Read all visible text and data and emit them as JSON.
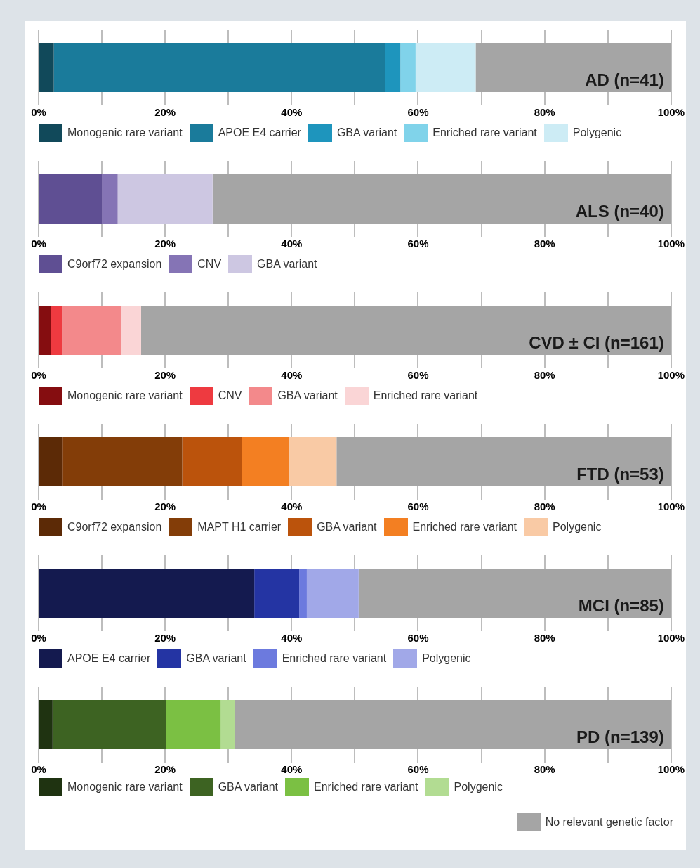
{
  "chart_data": [
    {
      "type": "bar",
      "title": "AD (n=41)",
      "orientation": "horizontal",
      "stacked": true,
      "categories": [
        null
      ],
      "xlim": [
        0,
        100
      ],
      "xticks": [
        {
          "value": 0,
          "label": "0%"
        },
        {
          "value": 10,
          "label": null
        },
        {
          "value": 20,
          "label": "20%"
        },
        {
          "value": 30,
          "label": null
        },
        {
          "value": 40,
          "label": "40%"
        },
        {
          "value": 50,
          "label": null
        },
        {
          "value": 60,
          "label": "60%"
        },
        {
          "value": 70,
          "label": null
        },
        {
          "value": 80,
          "label": "80%"
        },
        {
          "value": 90,
          "label": null
        },
        {
          "value": 100,
          "label": "100%"
        }
      ],
      "grid": "x",
      "legend": "bottom",
      "series": [
        {
          "name": "Monogenic rare variant",
          "color": "#11495a",
          "values": [
            2.4
          ]
        },
        {
          "name": "APOE E4 carrier",
          "color": "#1a7b9b",
          "values": [
            52.4
          ]
        },
        {
          "name": "GBA variant",
          "color": "#1e95bd",
          "values": [
            2.4
          ]
        },
        {
          "name": "Enriched rare variant",
          "color": "#80d3ea",
          "values": [
            2.4
          ]
        },
        {
          "name": "Polygenic",
          "color": "#cdecf5",
          "values": [
            9.5
          ]
        },
        {
          "color": "#a5a5a5",
          "values": [
            30.9
          ]
        }
      ]
    },
    {
      "type": "bar",
      "title": "ALS (n=40)",
      "orientation": "horizontal",
      "stacked": true,
      "categories": [
        null
      ],
      "xlim": [
        0,
        100
      ],
      "xticks": [
        {
          "value": 0,
          "label": "0%"
        },
        {
          "value": 10,
          "label": null
        },
        {
          "value": 20,
          "label": "20%"
        },
        {
          "value": 30,
          "label": null
        },
        {
          "value": 40,
          "label": "40%"
        },
        {
          "value": 50,
          "label": null
        },
        {
          "value": 60,
          "label": "60%"
        },
        {
          "value": 70,
          "label": null
        },
        {
          "value": 80,
          "label": "80%"
        },
        {
          "value": 90,
          "label": null
        },
        {
          "value": 100,
          "label": "100%"
        }
      ],
      "grid": "x",
      "legend": "bottom",
      "series": [
        {
          "name": "C9orf72 expansion",
          "color": "#5f4f93",
          "values": [
            10
          ]
        },
        {
          "name": "CNV",
          "color": "#8574b5",
          "values": [
            2.5
          ]
        },
        {
          "name": "GBA variant",
          "color": "#cdc7e2",
          "values": [
            15
          ]
        },
        {
          "color": "#a5a5a5",
          "values": [
            72.5
          ]
        }
      ]
    },
    {
      "type": "bar",
      "title": "CVD ± CI (n=161)",
      "orientation": "horizontal",
      "stacked": true,
      "categories": [
        null
      ],
      "xlim": [
        0,
        100
      ],
      "xticks": [
        {
          "value": 0,
          "label": "0%"
        },
        {
          "value": 10,
          "label": null
        },
        {
          "value": 20,
          "label": "20%"
        },
        {
          "value": 30,
          "label": null
        },
        {
          "value": 40,
          "label": "40%"
        },
        {
          "value": 50,
          "label": null
        },
        {
          "value": 60,
          "label": "60%"
        },
        {
          "value": 70,
          "label": null
        },
        {
          "value": 80,
          "label": "80%"
        },
        {
          "value": 90,
          "label": null
        },
        {
          "value": 100,
          "label": "100%"
        }
      ],
      "grid": "x",
      "legend": "bottom",
      "series": [
        {
          "name": "Monogenic rare variant",
          "color": "#850d10",
          "values": [
            1.9
          ]
        },
        {
          "name": "CNV",
          "color": "#ee3a40",
          "values": [
            1.9
          ]
        },
        {
          "name": "GBA variant",
          "color": "#f3898b",
          "values": [
            9.3
          ]
        },
        {
          "name": "Enriched rare variant",
          "color": "#fad5d6",
          "values": [
            3.1
          ]
        },
        {
          "color": "#a5a5a5",
          "values": [
            83.8
          ]
        }
      ]
    },
    {
      "type": "bar",
      "title": "FTD (n=53)",
      "orientation": "horizontal",
      "stacked": true,
      "categories": [
        null
      ],
      "xlim": [
        0,
        100
      ],
      "xticks": [
        {
          "value": 0,
          "label": "0%"
        },
        {
          "value": 10,
          "label": null
        },
        {
          "value": 20,
          "label": "20%"
        },
        {
          "value": 30,
          "label": null
        },
        {
          "value": 40,
          "label": "40%"
        },
        {
          "value": 50,
          "label": null
        },
        {
          "value": 60,
          "label": "60%"
        },
        {
          "value": 70,
          "label": null
        },
        {
          "value": 80,
          "label": "80%"
        },
        {
          "value": 90,
          "label": null
        },
        {
          "value": 100,
          "label": "100%"
        }
      ],
      "grid": "x",
      "legend": "bottom",
      "series": [
        {
          "name": "C9orf72 expansion",
          "color": "#5c2a06",
          "values": [
            3.8
          ]
        },
        {
          "name": "MAPT H1 carrier",
          "color": "#833d08",
          "values": [
            18.9
          ]
        },
        {
          "name": "GBA variant",
          "color": "#bb530c",
          "values": [
            9.4
          ]
        },
        {
          "name": "Enriched rare variant",
          "color": "#f37f22",
          "values": [
            7.5
          ]
        },
        {
          "name": "Polygenic",
          "color": "#f9caa5",
          "values": [
            7.5
          ]
        },
        {
          "color": "#a5a5a5",
          "values": [
            52.9
          ]
        }
      ]
    },
    {
      "type": "bar",
      "title": "MCI (n=85)",
      "orientation": "horizontal",
      "stacked": true,
      "categories": [
        null
      ],
      "xlim": [
        0,
        100
      ],
      "xticks": [
        {
          "value": 0,
          "label": "0%"
        },
        {
          "value": 10,
          "label": null
        },
        {
          "value": 20,
          "label": "20%"
        },
        {
          "value": 30,
          "label": null
        },
        {
          "value": 40,
          "label": "40%"
        },
        {
          "value": 50,
          "label": null
        },
        {
          "value": 60,
          "label": "60%"
        },
        {
          "value": 70,
          "label": null
        },
        {
          "value": 80,
          "label": "80%"
        },
        {
          "value": 90,
          "label": null
        },
        {
          "value": 100,
          "label": "100%"
        }
      ],
      "grid": "x",
      "legend": "bottom",
      "series": [
        {
          "name": "APOE E4 carrier",
          "color": "#141a4f",
          "values": [
            34.1
          ]
        },
        {
          "name": "GBA variant",
          "color": "#2434a3",
          "values": [
            7.1
          ]
        },
        {
          "name": "Enriched rare variant",
          "color": "#6c7ade",
          "values": [
            1.2
          ]
        },
        {
          "name": "Polygenic",
          "color": "#a1a8e8",
          "values": [
            8.2
          ]
        },
        {
          "color": "#a5a5a5",
          "values": [
            49.4
          ]
        }
      ]
    },
    {
      "type": "bar",
      "title": "PD (n=139)",
      "orientation": "horizontal",
      "stacked": true,
      "categories": [
        null
      ],
      "xlim": [
        0,
        100
      ],
      "xticks": [
        {
          "value": 0,
          "label": "0%"
        },
        {
          "value": 10,
          "label": null
        },
        {
          "value": 20,
          "label": "20%"
        },
        {
          "value": 30,
          "label": null
        },
        {
          "value": 40,
          "label": "40%"
        },
        {
          "value": 50,
          "label": null
        },
        {
          "value": 60,
          "label": "60%"
        },
        {
          "value": 70,
          "label": null
        },
        {
          "value": 80,
          "label": "80%"
        },
        {
          "value": 90,
          "label": null
        },
        {
          "value": 100,
          "label": "100%"
        }
      ],
      "grid": "x",
      "legend": "bottom",
      "series": [
        {
          "name": "Monogenic rare variant",
          "color": "#1f3311",
          "values": [
            2.2
          ]
        },
        {
          "name": "GBA variant",
          "color": "#3d6322",
          "values": [
            18.0
          ]
        },
        {
          "name": "Enriched rare variant",
          "color": "#7bc043",
          "values": [
            8.6
          ]
        },
        {
          "name": "Polygenic",
          "color": "#b2dc92",
          "values": [
            2.2
          ]
        },
        {
          "name": "No relevant genetic factor",
          "color": "#a5a5a5",
          "values": [
            69.1
          ]
        }
      ]
    }
  ]
}
